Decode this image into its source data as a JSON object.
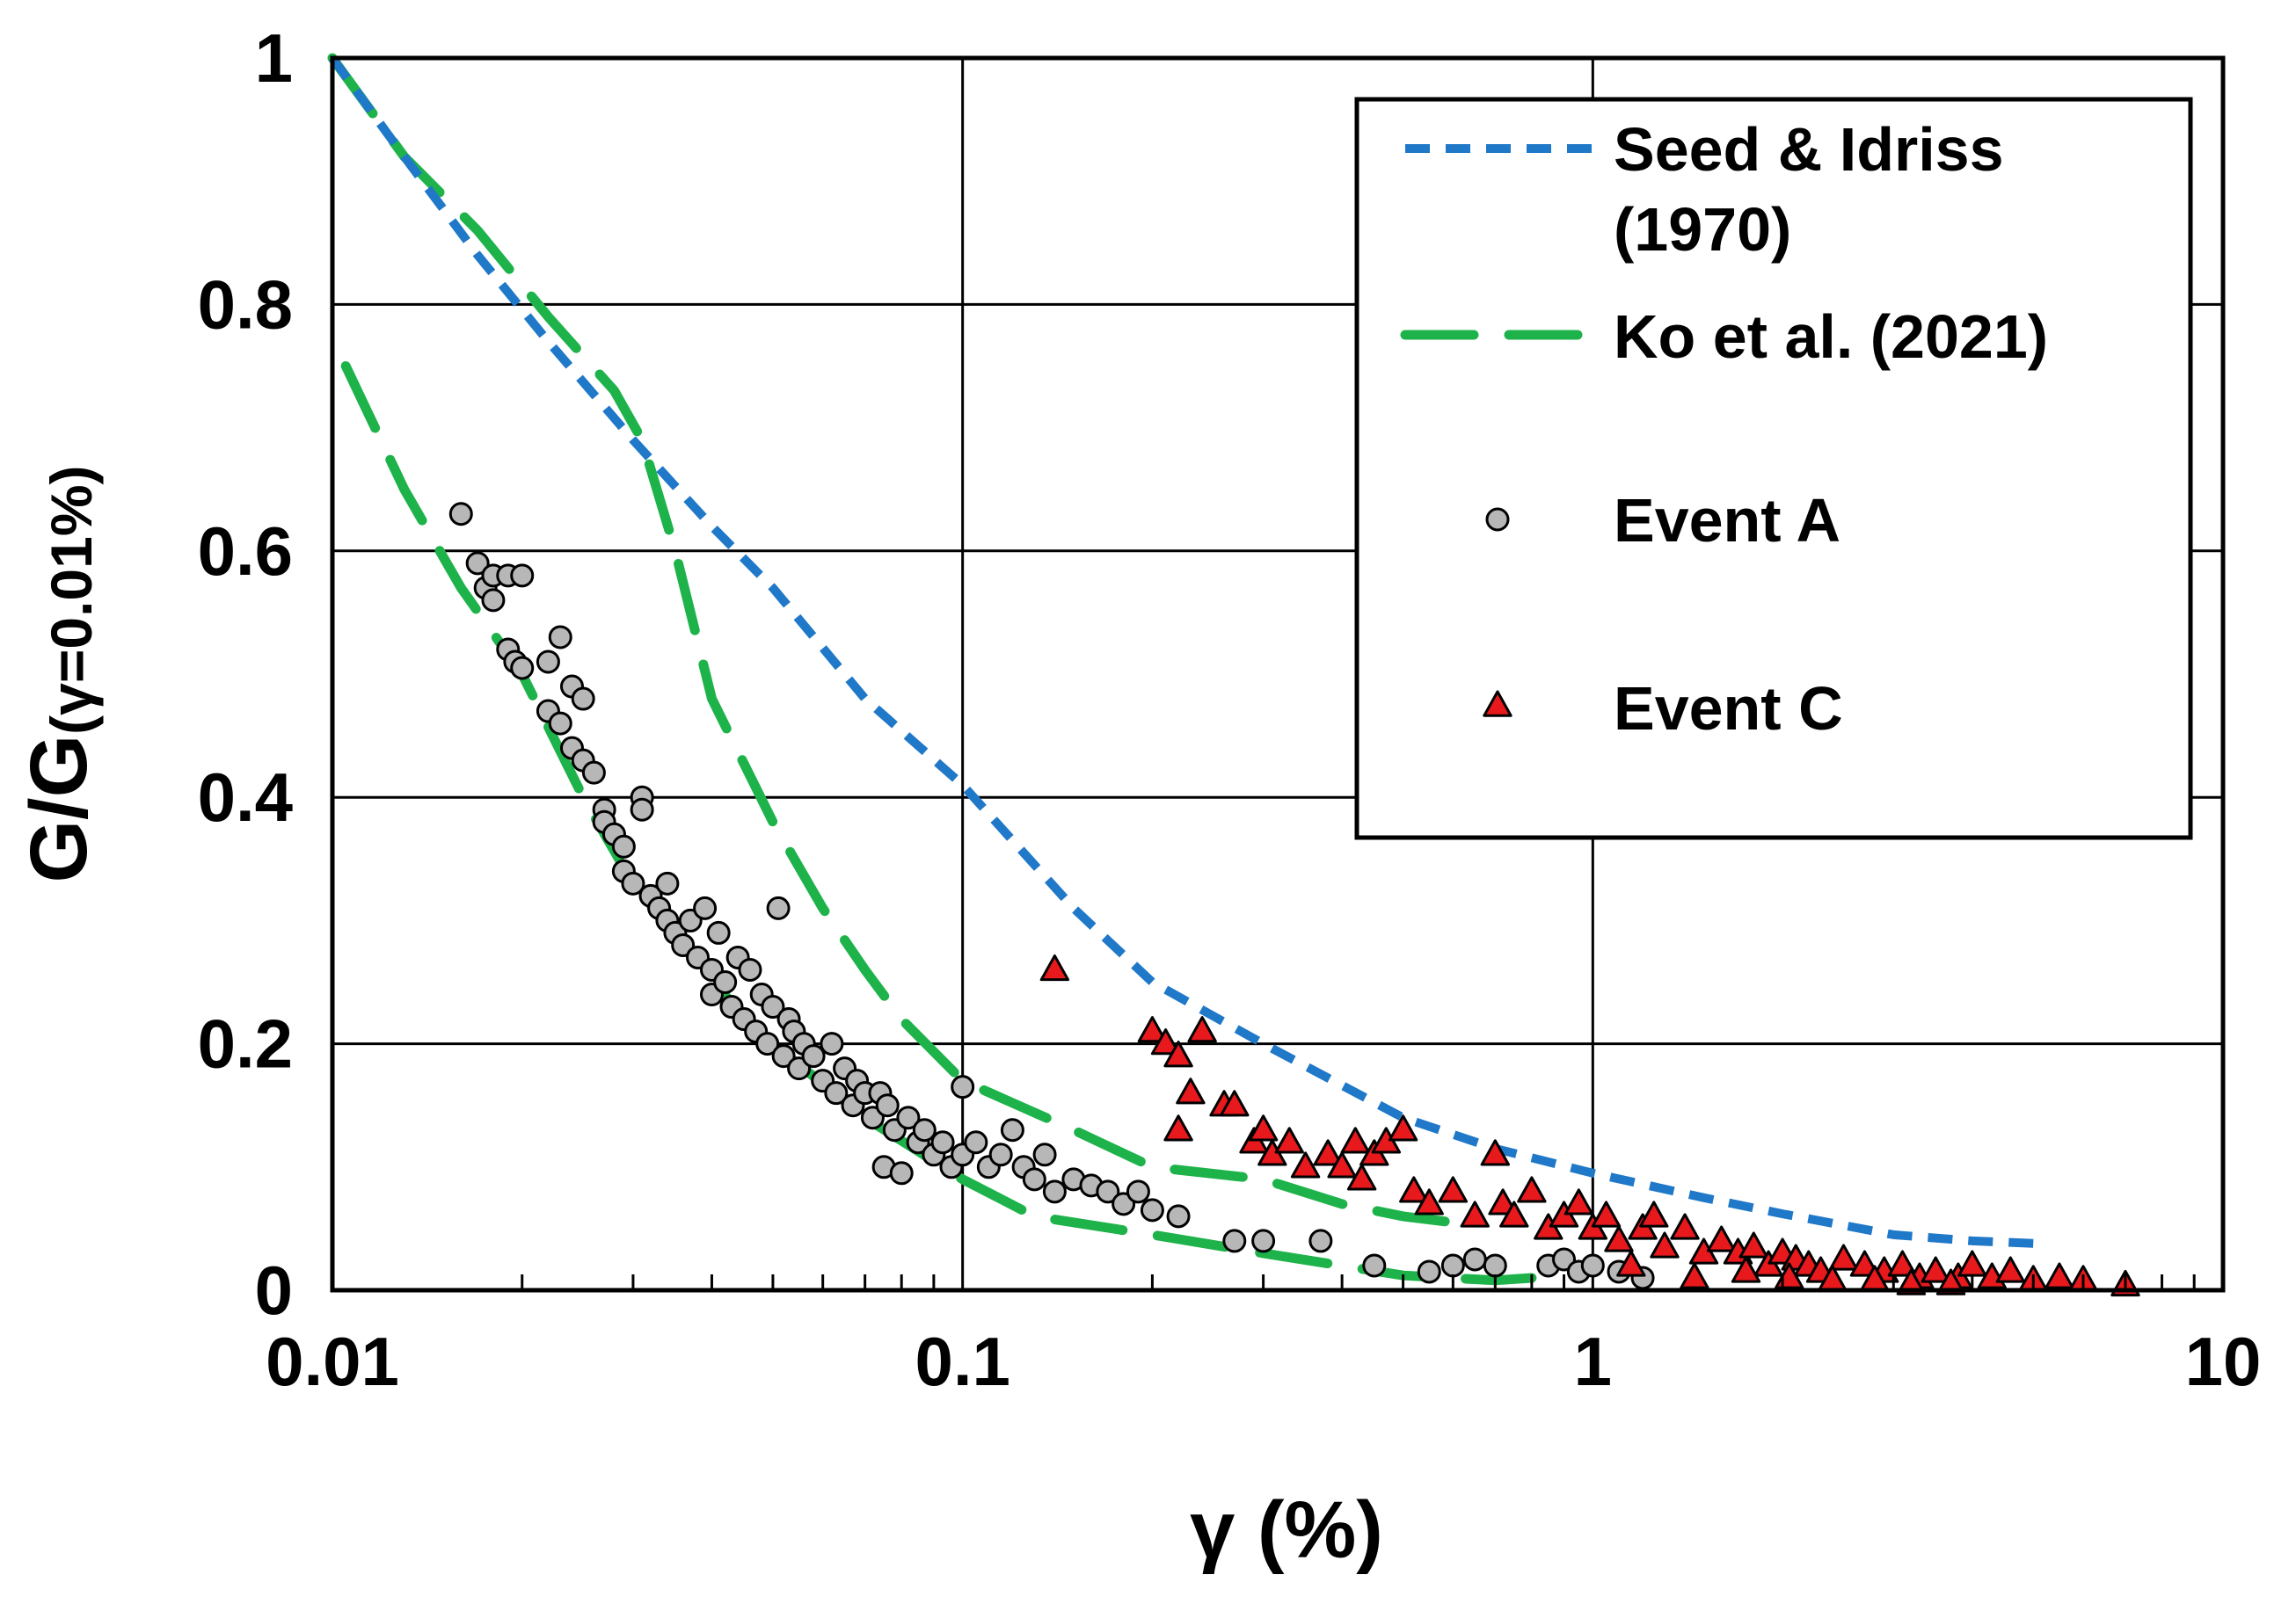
{
  "chart_data": {
    "type": "scatter",
    "x_scale": "log",
    "xlim": [
      0.01,
      10
    ],
    "ylim": [
      0,
      1
    ],
    "x_ticks": [
      "0.01",
      "0.1",
      "1",
      "10"
    ],
    "y_ticks": [
      "0",
      "0.2",
      "0.4",
      "0.6",
      "0.8",
      "1"
    ],
    "xlabel": "γ (%)",
    "ylabel_main": "G/G",
    "ylabel_sub": "(γ=0.01%)",
    "grid": true,
    "legend_position": "top-right",
    "colors": {
      "seed_idriss": "#1f78c8",
      "ko": "#1eb34a",
      "event_a_fill": "#b7b7b7",
      "event_c_fill": "#e8191c",
      "marker_stroke": "#000000"
    },
    "series": [
      {
        "name": "Seed & Idriss",
        "legend_line2": "(1970)",
        "kind": "line",
        "style": "short-dash",
        "x": [
          0.01,
          0.013,
          0.017,
          0.022,
          0.03,
          0.04,
          0.05,
          0.07,
          0.1,
          0.15,
          0.2,
          0.3,
          0.5,
          0.7,
          1,
          1.5,
          2,
          3,
          4,
          5
        ],
        "y": [
          1.0,
          0.92,
          0.84,
          0.77,
          0.69,
          0.62,
          0.57,
          0.48,
          0.41,
          0.31,
          0.25,
          0.2,
          0.14,
          0.115,
          0.095,
          0.075,
          0.062,
          0.045,
          0.04,
          0.038
        ]
      },
      {
        "name": "Ko et al. (2021)",
        "kind": "line",
        "style": "long-dash",
        "curves": [
          {
            "x": [
              0.01,
              0.013,
              0.017,
              0.022,
              0.028,
              0.031,
              0.035,
              0.04,
              0.05,
              0.06,
              0.07,
              0.08,
              0.1,
              0.15,
              0.2,
              0.3,
              0.4,
              0.5,
              0.6
            ],
            "y": [
              1.0,
              0.92,
              0.86,
              0.79,
              0.73,
              0.69,
              0.6,
              0.48,
              0.38,
              0.31,
              0.26,
              0.22,
              0.17,
              0.13,
              0.1,
              0.09,
              0.07,
              0.06,
              0.055
            ]
          },
          {
            "x": [
              0.0105,
              0.013,
              0.016,
              0.02,
              0.025,
              0.03,
              0.04,
              0.05,
              0.07,
              0.1,
              0.13,
              0.2,
              0.3,
              0.5,
              0.7,
              0.8
            ],
            "y": [
              0.75,
              0.65,
              0.57,
              0.5,
              0.4,
              0.33,
              0.25,
              0.2,
              0.14,
              0.09,
              0.06,
              0.045,
              0.03,
              0.012,
              0.008,
              0.01
            ]
          }
        ]
      },
      {
        "name": "Event A",
        "kind": "scatter",
        "marker": "circle",
        "points": [
          [
            0.016,
            0.63
          ],
          [
            0.017,
            0.59
          ],
          [
            0.0175,
            0.57
          ],
          [
            0.018,
            0.58
          ],
          [
            0.018,
            0.56
          ],
          [
            0.019,
            0.58
          ],
          [
            0.019,
            0.52
          ],
          [
            0.0195,
            0.51
          ],
          [
            0.02,
            0.505
          ],
          [
            0.02,
            0.58
          ],
          [
            0.022,
            0.51
          ],
          [
            0.023,
            0.53
          ],
          [
            0.022,
            0.47
          ],
          [
            0.023,
            0.46
          ],
          [
            0.024,
            0.44
          ],
          [
            0.024,
            0.49
          ],
          [
            0.025,
            0.48
          ],
          [
            0.025,
            0.43
          ],
          [
            0.026,
            0.42
          ],
          [
            0.027,
            0.39
          ],
          [
            0.027,
            0.38
          ],
          [
            0.028,
            0.37
          ],
          [
            0.029,
            0.36
          ],
          [
            0.029,
            0.34
          ],
          [
            0.03,
            0.33
          ],
          [
            0.031,
            0.4
          ],
          [
            0.031,
            0.39
          ],
          [
            0.032,
            0.32
          ],
          [
            0.033,
            0.31
          ],
          [
            0.034,
            0.3
          ],
          [
            0.034,
            0.33
          ],
          [
            0.035,
            0.29
          ],
          [
            0.036,
            0.28
          ],
          [
            0.037,
            0.3
          ],
          [
            0.038,
            0.27
          ],
          [
            0.039,
            0.31
          ],
          [
            0.04,
            0.26
          ],
          [
            0.04,
            0.24
          ],
          [
            0.041,
            0.29
          ],
          [
            0.042,
            0.25
          ],
          [
            0.043,
            0.23
          ],
          [
            0.044,
            0.27
          ],
          [
            0.045,
            0.22
          ],
          [
            0.046,
            0.26
          ],
          [
            0.047,
            0.21
          ],
          [
            0.048,
            0.24
          ],
          [
            0.049,
            0.2
          ],
          [
            0.05,
            0.23
          ],
          [
            0.051,
            0.31
          ],
          [
            0.052,
            0.19
          ],
          [
            0.053,
            0.22
          ],
          [
            0.054,
            0.21
          ],
          [
            0.055,
            0.18
          ],
          [
            0.056,
            0.2
          ],
          [
            0.058,
            0.19
          ],
          [
            0.06,
            0.17
          ],
          [
            0.062,
            0.2
          ],
          [
            0.063,
            0.16
          ],
          [
            0.065,
            0.18
          ],
          [
            0.067,
            0.15
          ],
          [
            0.068,
            0.17
          ],
          [
            0.07,
            0.16
          ],
          [
            0.072,
            0.14
          ],
          [
            0.074,
            0.16
          ],
          [
            0.075,
            0.1
          ],
          [
            0.076,
            0.15
          ],
          [
            0.078,
            0.13
          ],
          [
            0.08,
            0.095
          ],
          [
            0.082,
            0.14
          ],
          [
            0.085,
            0.12
          ],
          [
            0.087,
            0.13
          ],
          [
            0.09,
            0.11
          ],
          [
            0.093,
            0.12
          ],
          [
            0.096,
            0.1
          ],
          [
            0.1,
            0.165
          ],
          [
            0.1,
            0.11
          ],
          [
            0.105,
            0.12
          ],
          [
            0.11,
            0.1
          ],
          [
            0.115,
            0.11
          ],
          [
            0.12,
            0.13
          ],
          [
            0.125,
            0.1
          ],
          [
            0.13,
            0.09
          ],
          [
            0.135,
            0.11
          ],
          [
            0.14,
            0.08
          ],
          [
            0.15,
            0.09
          ],
          [
            0.16,
            0.085
          ],
          [
            0.17,
            0.08
          ],
          [
            0.18,
            0.07
          ],
          [
            0.19,
            0.08
          ],
          [
            0.2,
            0.065
          ],
          [
            0.22,
            0.06
          ],
          [
            0.27,
            0.04
          ],
          [
            0.3,
            0.04
          ],
          [
            0.37,
            0.04
          ],
          [
            0.45,
            0.02
          ],
          [
            0.55,
            0.015
          ],
          [
            0.6,
            0.02
          ],
          [
            0.65,
            0.025
          ],
          [
            0.7,
            0.02
          ],
          [
            0.85,
            0.02
          ],
          [
            0.9,
            0.025
          ],
          [
            0.95,
            0.015
          ],
          [
            1.0,
            0.02
          ],
          [
            1.1,
            0.015
          ],
          [
            1.2,
            0.01
          ]
        ]
      },
      {
        "name": "Event C",
        "kind": "scatter",
        "marker": "triangle",
        "points": [
          [
            0.14,
            0.26
          ],
          [
            0.2,
            0.21
          ],
          [
            0.21,
            0.2
          ],
          [
            0.22,
            0.19
          ],
          [
            0.24,
            0.21
          ],
          [
            0.23,
            0.16
          ],
          [
            0.22,
            0.13
          ],
          [
            0.26,
            0.15
          ],
          [
            0.27,
            0.15
          ],
          [
            0.29,
            0.12
          ],
          [
            0.3,
            0.13
          ],
          [
            0.31,
            0.11
          ],
          [
            0.33,
            0.12
          ],
          [
            0.35,
            0.1
          ],
          [
            0.38,
            0.11
          ],
          [
            0.4,
            0.1
          ],
          [
            0.42,
            0.12
          ],
          [
            0.43,
            0.09
          ],
          [
            0.45,
            0.11
          ],
          [
            0.47,
            0.12
          ],
          [
            0.5,
            0.13
          ],
          [
            0.52,
            0.08
          ],
          [
            0.55,
            0.07
          ],
          [
            0.6,
            0.08
          ],
          [
            0.65,
            0.06
          ],
          [
            0.7,
            0.11
          ],
          [
            0.72,
            0.07
          ],
          [
            0.75,
            0.06
          ],
          [
            0.8,
            0.08
          ],
          [
            0.85,
            0.05
          ],
          [
            0.9,
            0.06
          ],
          [
            0.95,
            0.07
          ],
          [
            1.0,
            0.05
          ],
          [
            1.05,
            0.06
          ],
          [
            1.1,
            0.04
          ],
          [
            1.2,
            0.05
          ],
          [
            1.25,
            0.06
          ],
          [
            1.3,
            0.035
          ],
          [
            1.4,
            0.05
          ],
          [
            1.5,
            0.03
          ],
          [
            1.6,
            0.04
          ],
          [
            1.7,
            0.03
          ],
          [
            1.8,
            0.035
          ],
          [
            1.9,
            0.02
          ],
          [
            2.0,
            0.03
          ],
          [
            2.1,
            0.025
          ],
          [
            2.2,
            0.02
          ],
          [
            2.3,
            0.015
          ],
          [
            2.5,
            0.025
          ],
          [
            2.7,
            0.02
          ],
          [
            2.9,
            0.015
          ],
          [
            3.1,
            0.02
          ],
          [
            3.3,
            0.01
          ],
          [
            3.5,
            0.015
          ],
          [
            3.8,
            0.01
          ],
          [
            4.0,
            0.02
          ],
          [
            4.3,
            0.01
          ],
          [
            4.6,
            0.015
          ],
          [
            5.0,
            0.008
          ],
          [
            5.5,
            0.01
          ],
          [
            6.0,
            0.008
          ],
          [
            7.0,
            0.004
          ],
          [
            1.15,
            0.02
          ],
          [
            1.45,
            0.01
          ],
          [
            1.75,
            0.015
          ],
          [
            2.05,
            0.01
          ],
          [
            2.4,
            0.008
          ],
          [
            2.8,
            0.008
          ],
          [
            3.2,
            0.005
          ],
          [
            3.7,
            0.005
          ]
        ]
      }
    ],
    "legend": [
      {
        "label": "Seed & Idriss",
        "label2": "(1970)"
      },
      {
        "label": "Ko et al. (2021)"
      },
      {
        "label": "Event A"
      },
      {
        "label": "Event C"
      }
    ]
  }
}
